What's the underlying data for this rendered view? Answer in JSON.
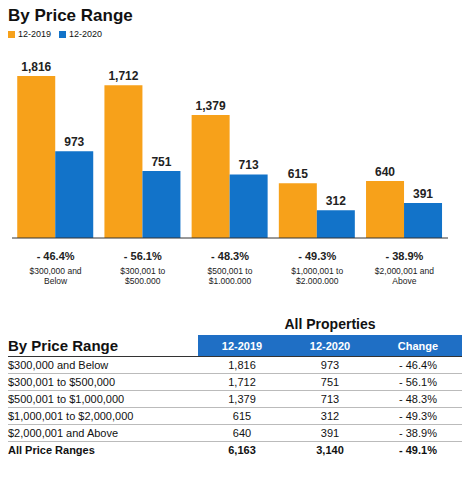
{
  "chart_data": {
    "type": "bar",
    "title": "By Price Range",
    "categories": [
      "$300,000 and Below",
      "$300,001 to $500,000",
      "$500,001 to $1,000,000",
      "$1,000,001 to $2,000,000",
      "$2,000,001 and Above"
    ],
    "series": [
      {
        "name": "12-2019",
        "color": "#F7A11A",
        "values": [
          1816,
          1712,
          1379,
          615,
          640
        ],
        "value_labels": [
          "1,816",
          "1,712",
          "1,379",
          "615",
          "640"
        ]
      },
      {
        "name": "12-2020",
        "color": "#1273C9",
        "values": [
          973,
          751,
          713,
          312,
          391
        ],
        "value_labels": [
          "973",
          "751",
          "713",
          "312",
          "391"
        ]
      }
    ],
    "annotations": [
      "- 46.4%",
      "- 56.1%",
      "- 48.3%",
      "- 49.3%",
      "- 38.9%"
    ],
    "data_labels": true,
    "tick_labels": "x",
    "legend": "top left"
  },
  "table": {
    "title": "All Properties",
    "header": [
      "By Price Range",
      "12-2019",
      "12-2020",
      "Change"
    ],
    "rows": [
      [
        "$300,000 and Below",
        "1,816",
        "973",
        "- 46.4%"
      ],
      [
        "$300,001 to $500,000",
        "1,712",
        "751",
        "- 56.1%"
      ],
      [
        "$500,001 to $1,000,000",
        "1,379",
        "713",
        "- 48.3%"
      ],
      [
        "$1,000,001 to $2,000,000",
        "615",
        "312",
        "- 49.3%"
      ],
      [
        "$2,000,001 and Above",
        "640",
        "391",
        "- 38.9%"
      ]
    ],
    "total": [
      "All Price Ranges",
      "6,163",
      "3,140",
      "- 49.1%"
    ]
  }
}
